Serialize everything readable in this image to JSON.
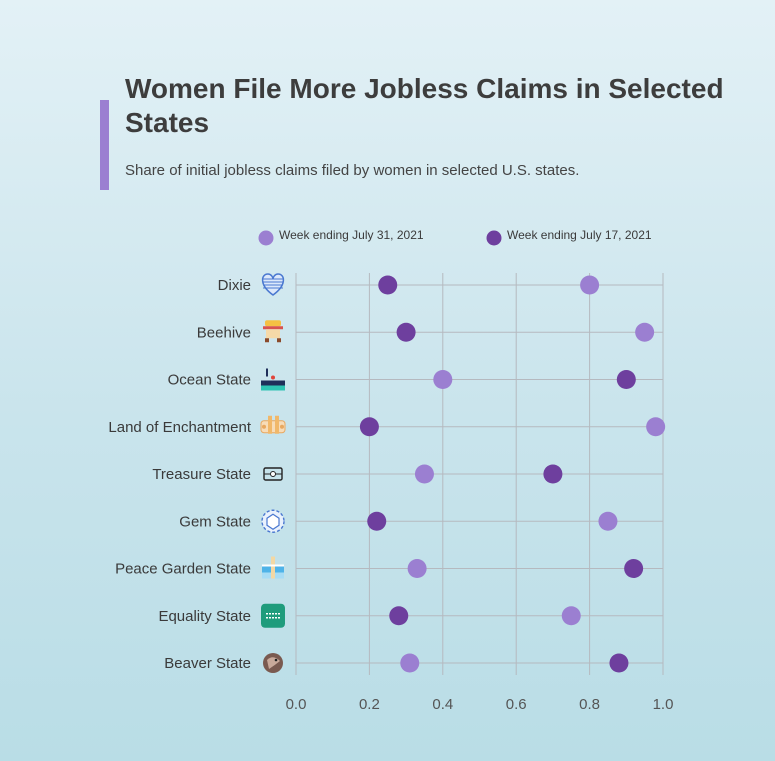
{
  "header": {
    "title": "Women File More Jobless Claims in Selected States",
    "subtitle": "Share of initial jobless claims filed by women in selected U.S. states."
  },
  "colors": {
    "accent": "#9b7fd1",
    "series_light": "#9b7fd1",
    "series_dark": "#6e3f9e",
    "grid": "#b5b9bf"
  },
  "chart_data": {
    "type": "scatter",
    "title": "Women File More Jobless Claims in Selected States",
    "subtitle": "Share of initial jobless claims filed by women in selected U.S. states.",
    "xlabel": "",
    "ylabel": "",
    "xlim": [
      0,
      1.0
    ],
    "xticks": [
      "0.0",
      "0.2",
      "0.4",
      "0.6",
      "0.8",
      "1.0"
    ],
    "grid": true,
    "legend_position": "top",
    "categories": [
      "Dixie",
      "Beehive",
      "Ocean State",
      "Land of Enchantment",
      "Treasure State",
      "Gem State",
      "Peace Garden State",
      "Equality State",
      "Beaver State"
    ],
    "category_icons": [
      "heart-flag-icon",
      "beehive-icon",
      "ship-icon",
      "pueblo-icon",
      "treasure-chest-icon",
      "gem-icon",
      "peace-garden-icon",
      "equality-sign-icon",
      "beaver-icon"
    ],
    "series": [
      {
        "name": "Week ending July 31, 2021",
        "color": "#9b7fd1",
        "values": [
          0.8,
          0.95,
          0.4,
          0.98,
          0.35,
          0.85,
          0.33,
          0.75,
          0.31
        ]
      },
      {
        "name": "Week ending July 17, 2021",
        "color": "#6e3f9e",
        "values": [
          0.25,
          0.3,
          0.9,
          0.2,
          0.7,
          0.22,
          0.92,
          0.28,
          0.88
        ]
      }
    ]
  }
}
